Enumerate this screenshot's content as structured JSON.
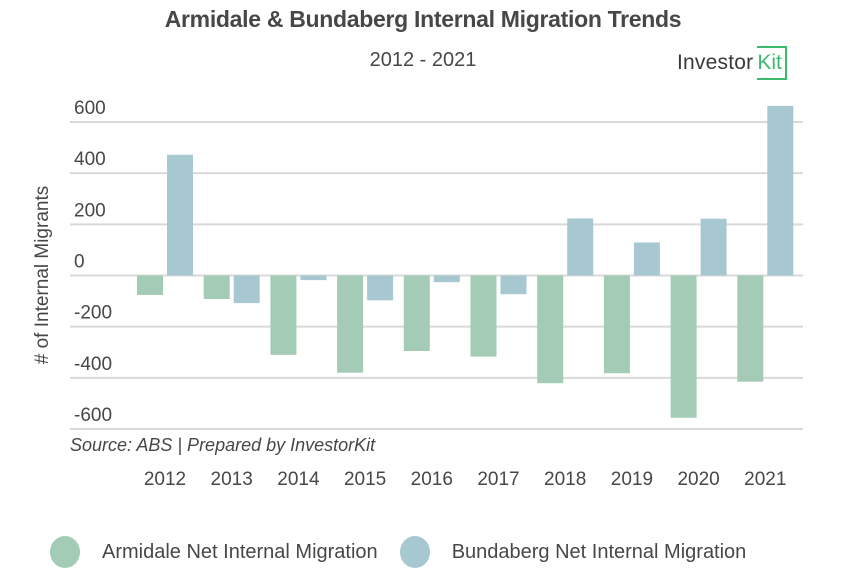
{
  "header": {
    "title": "Armidale & Bundaberg Internal Migration Trends",
    "subtitle": "2012 - 2021",
    "logo_text": "Investor",
    "logo_kit": "Kit"
  },
  "colors": {
    "armidale": "#a3cbb5",
    "bundaberg": "#a7c8d1",
    "grid": "#d9d9d9",
    "text": "#474747",
    "logo_accent": "#3dbb6c"
  },
  "chart_data": {
    "type": "bar",
    "title": "Armidale & Bundaberg Internal Migration Trends",
    "subtitle": "2012 - 2021",
    "xlabel": "",
    "ylabel": "# of Internal Migrants",
    "ylim": [
      -600,
      600
    ],
    "yticks": [
      600,
      400,
      200,
      0,
      -200,
      -400,
      -600
    ],
    "ytick_labels": [
      "600",
      "400",
      "200",
      "0",
      "-200",
      "-400",
      "-600"
    ],
    "grid": true,
    "categories": [
      "2012",
      "2013",
      "2014",
      "2015",
      "2016",
      "2017",
      "2018",
      "2019",
      "2020",
      "2021"
    ],
    "series": [
      {
        "name": "Armidale Net Internal Migration",
        "values": [
          -76,
          -92,
          -310,
          -380,
          -295,
          -317,
          -421,
          -382,
          -556,
          -415
        ]
      },
      {
        "name": "Bundaberg Net Internal Migration",
        "values": [
          472,
          -108,
          -18,
          -97,
          -26,
          -73,
          223,
          129,
          222,
          663
        ]
      }
    ],
    "annotation": "Source: ABS | Prepared by InvestorKit",
    "legend_position": "bottom"
  }
}
